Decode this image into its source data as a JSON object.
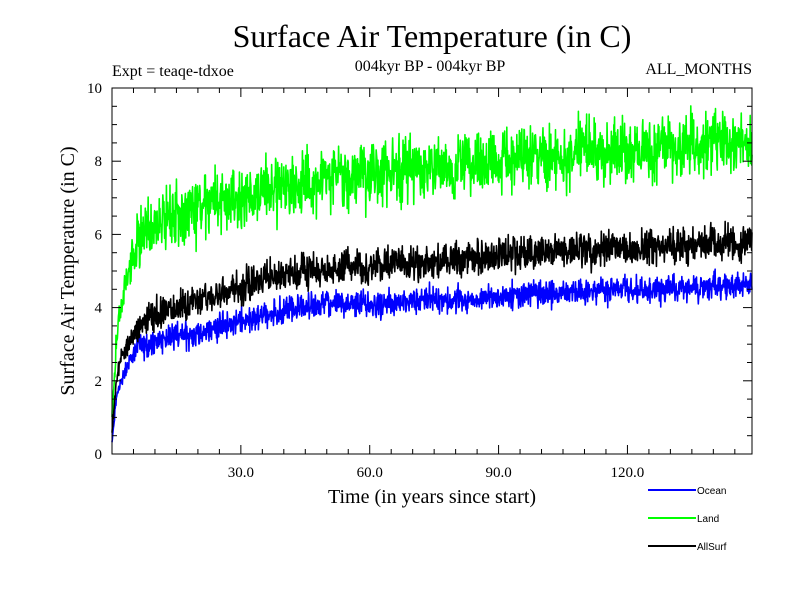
{
  "chart_data": {
    "type": "line",
    "title": "Surface Air Temperature (in C)",
    "subtitle": "004kyr BP - 004kyr BP",
    "experiment_label": "Expt = teaqe-tdxoe",
    "months_label": "ALL_MONTHS",
    "xlabel": "Time (in years since start)",
    "ylabel": "Surface Air Temperature (in C)",
    "xlim": [
      0,
      149
    ],
    "ylim": [
      0,
      10
    ],
    "x_ticks": [
      30,
      60,
      90,
      120
    ],
    "x_tick_labels": [
      "30.0",
      "60.0",
      "90.0",
      "120.0"
    ],
    "y_ticks": [
      0,
      2,
      4,
      6,
      8,
      10
    ],
    "y_tick_labels": [
      "0",
      "2",
      "4",
      "6",
      "8",
      "10"
    ],
    "series": [
      {
        "name": "Ocean",
        "color": "#0000ff",
        "x": [
          0,
          1,
          2,
          4,
          6,
          8,
          10,
          15,
          20,
          25,
          30,
          35,
          40,
          45,
          50,
          55,
          60,
          70,
          80,
          90,
          100,
          110,
          120,
          130,
          140,
          149
        ],
        "values": [
          0.3,
          1.5,
          2.0,
          2.5,
          2.9,
          3.0,
          3.1,
          3.2,
          3.3,
          3.5,
          3.6,
          3.8,
          3.9,
          4.0,
          4.1,
          4.1,
          4.1,
          4.2,
          4.2,
          4.3,
          4.4,
          4.4,
          4.5,
          4.5,
          4.6,
          4.6
        ],
        "amplitude": 0.35
      },
      {
        "name": "Land",
        "color": "#00ff00",
        "x": [
          0,
          1,
          2,
          4,
          6,
          8,
          10,
          15,
          20,
          25,
          30,
          35,
          40,
          45,
          50,
          55,
          60,
          70,
          80,
          90,
          100,
          110,
          120,
          130,
          140,
          149
        ],
        "values": [
          1.0,
          3.0,
          4.0,
          5.0,
          5.8,
          6.2,
          6.3,
          6.5,
          6.7,
          6.9,
          7.0,
          7.2,
          7.3,
          7.4,
          7.5,
          7.6,
          7.6,
          7.8,
          7.9,
          8.0,
          8.1,
          8.2,
          8.3,
          8.4,
          8.5,
          8.5
        ],
        "amplitude": 0.85
      },
      {
        "name": "AllSurf",
        "color": "#000000",
        "x": [
          0,
          1,
          2,
          4,
          6,
          8,
          10,
          15,
          20,
          25,
          30,
          35,
          40,
          45,
          50,
          55,
          60,
          70,
          80,
          90,
          100,
          110,
          120,
          130,
          140,
          149
        ],
        "values": [
          0.6,
          2.0,
          2.6,
          3.1,
          3.5,
          3.7,
          3.8,
          4.0,
          4.2,
          4.4,
          4.6,
          4.8,
          4.9,
          5.0,
          5.1,
          5.1,
          5.1,
          5.2,
          5.3,
          5.4,
          5.5,
          5.6,
          5.6,
          5.7,
          5.8,
          5.8
        ],
        "amplitude": 0.45
      }
    ]
  }
}
